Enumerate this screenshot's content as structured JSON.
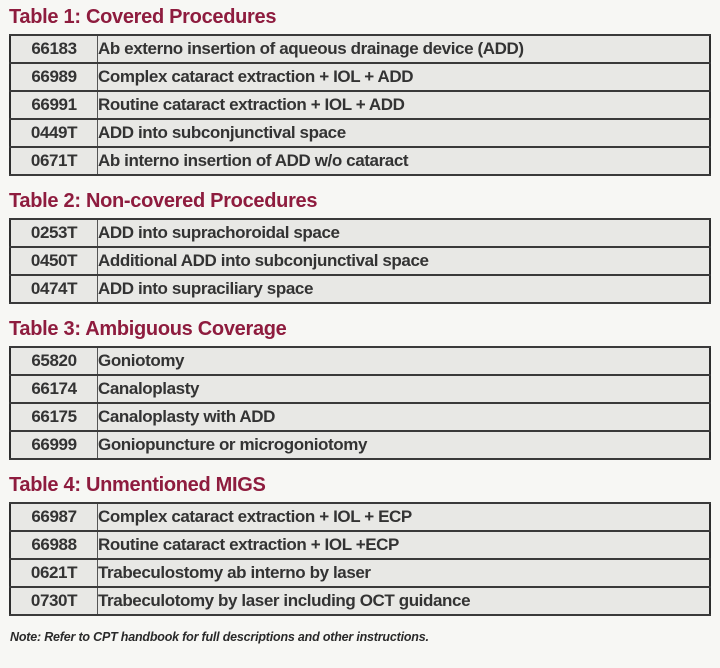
{
  "colors": {
    "heading_maroon": "#8e1c3e",
    "cell_background": "#e8e8e5",
    "table_border": "#2d2d2d",
    "body_text": "#333333",
    "page_background": "#f7f7f4"
  },
  "tables": [
    {
      "title": "Table 1: Covered Procedures",
      "rows": [
        {
          "code": "66183",
          "description": "Ab externo insertion of aqueous drainage device (ADD)"
        },
        {
          "code": "66989",
          "description": "Complex cataract extraction + IOL + ADD"
        },
        {
          "code": "66991",
          "description": "Routine cataract extraction + IOL + ADD"
        },
        {
          "code": "0449T",
          "description": "ADD into subconjunctival space"
        },
        {
          "code": "0671T",
          "description": "Ab interno insertion of ADD w/o cataract"
        }
      ]
    },
    {
      "title": "Table 2: Non-covered Procedures",
      "rows": [
        {
          "code": "0253T",
          "description": "ADD into suprachoroidal space"
        },
        {
          "code": "0450T",
          "description": "Additional ADD into subconjunctival space"
        },
        {
          "code": "0474T",
          "description": "ADD into supraciliary space"
        }
      ]
    },
    {
      "title": "Table 3: Ambiguous Coverage",
      "rows": [
        {
          "code": "65820",
          "description": "Goniotomy"
        },
        {
          "code": "66174",
          "description": "Canaloplasty"
        },
        {
          "code": "66175",
          "description": "Canaloplasty with ADD"
        },
        {
          "code": "66999",
          "description": "Goniopuncture or microgoniotomy"
        }
      ]
    },
    {
      "title": "Table 4: Unmentioned MIGS",
      "rows": [
        {
          "code": "66987",
          "description": "Complex cataract extraction + IOL + ECP"
        },
        {
          "code": "66988",
          "description": "Routine cataract extraction + IOL +ECP"
        },
        {
          "code": "0621T",
          "description": "Trabeculostomy ab interno by laser"
        },
        {
          "code": "0730T",
          "description": "Trabeculotomy by laser including OCT guidance"
        }
      ]
    }
  ],
  "footnote": {
    "text": "Note: Refer to CPT handbook for full descriptions and other instructions."
  }
}
